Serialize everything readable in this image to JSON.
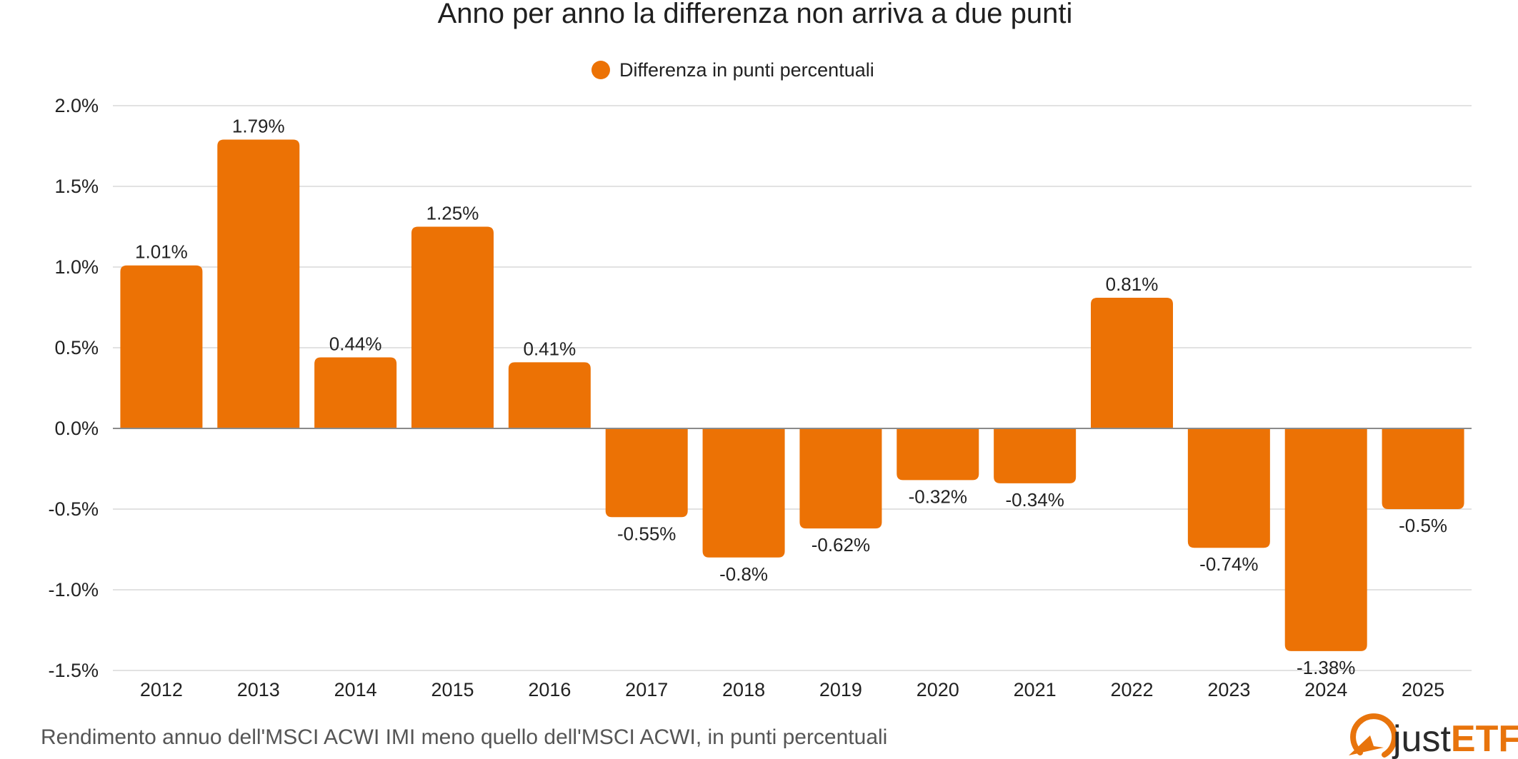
{
  "title": "Anno per anno la differenza non arriva a due punti",
  "caption": "Rendimento annuo dell'MSCI ACWI IMI meno quello dell'MSCI ACWI, in punti percentuali",
  "logo": {
    "text_light": "just",
    "text_bold": "ETF",
    "color": "#E8740C"
  },
  "colors": {
    "bar": "#EC7205",
    "grid": "#D9D9D9",
    "zero_line": "#8A8A8A"
  },
  "chart_data": {
    "type": "bar",
    "title": "Anno per anno la differenza non arriva a due punti",
    "categories": [
      "2012",
      "2013",
      "2014",
      "2015",
      "2016",
      "2017",
      "2018",
      "2019",
      "2020",
      "2021",
      "2022",
      "2023",
      "2024",
      "2025"
    ],
    "series": [
      {
        "name": "Differenza in punti percentuali",
        "values": [
          1.01,
          1.79,
          0.44,
          1.25,
          0.41,
          -0.55,
          -0.8,
          -0.62,
          -0.32,
          -0.34,
          0.81,
          -0.74,
          -1.38,
          -0.5
        ],
        "labels": [
          "1.01%",
          "1.79%",
          "0.44%",
          "1.25%",
          "0.41%",
          "-0.55%",
          "-0.8%",
          "-0.62%",
          "-0.32%",
          "-0.34%",
          "0.81%",
          "-0.74%",
          "-1.38%",
          "-0.5%"
        ]
      }
    ],
    "ylim": [
      -1.5,
      2.0
    ],
    "yticks": [
      2.0,
      1.5,
      1.0,
      0.5,
      0.0,
      -0.5,
      -1.0,
      -1.5
    ],
    "ytick_labels": [
      "2.0%",
      "1.5%",
      "1.0%",
      "0.5%",
      "0.0%",
      "-0.5%",
      "-1.0%",
      "-1.5%"
    ],
    "grid": true,
    "legend_position": "top-center"
  }
}
